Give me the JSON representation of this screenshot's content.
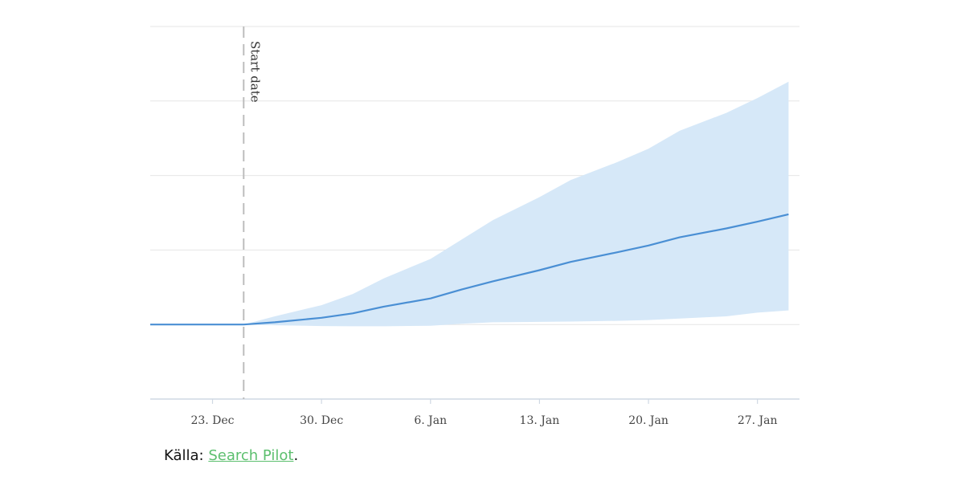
{
  "chart_data": {
    "type": "area",
    "x": [
      "2018-12-19",
      "2018-12-22",
      "2018-12-25",
      "2018-12-27",
      "2018-12-30",
      "2019-01-01",
      "2019-01-03",
      "2019-01-06",
      "2019-01-08",
      "2019-01-10",
      "2019-01-13",
      "2019-01-15",
      "2019-01-18",
      "2019-01-20",
      "2019-01-22",
      "2019-01-25",
      "2019-01-27",
      "2019-01-29"
    ],
    "series": [
      {
        "values": [
          0,
          0,
          0,
          0.15,
          0.45,
          0.75,
          1.2,
          1.75,
          2.35,
          2.9,
          3.65,
          4.2,
          4.85,
          5.3,
          5.85,
          6.45,
          6.9,
          7.4
        ],
        "band_lower": [
          0,
          0,
          0,
          -0.05,
          -0.1,
          -0.12,
          -0.12,
          -0.08,
          0.05,
          0.15,
          0.18,
          0.2,
          0.25,
          0.3,
          0.4,
          0.55,
          0.8,
          0.95
        ],
        "band_upper": [
          0,
          0,
          0,
          0.55,
          1.3,
          2.05,
          3.1,
          4.4,
          5.7,
          7.0,
          8.55,
          9.7,
          10.9,
          11.8,
          13.0,
          14.2,
          15.2,
          16.3
        ]
      }
    ],
    "x_ticks": [
      "2018-12-23",
      "2018-12-30",
      "2019-01-06",
      "2019-01-13",
      "2019-01-20",
      "2019-01-27"
    ],
    "x_tick_labels": [
      "23. Dec",
      "30. Dec",
      "6. Jan",
      "13. Jan",
      "20. Jan",
      "27. Jan"
    ],
    "ylim": [
      -5,
      20
    ],
    "y_gridlines": [
      -5,
      0,
      5,
      10,
      15,
      20
    ],
    "grid": true,
    "annotations": [
      {
        "type": "vertical-dashed-line",
        "x": "2018-12-25",
        "label": "Start date"
      }
    ],
    "colors": {
      "line": "#4a8fd4",
      "band": "#d6e8f8",
      "grid": "#e6e6e6",
      "annotation": "#bdbdbd"
    }
  },
  "source": {
    "prefix": "Källa: ",
    "link_text": "Search Pilot",
    "suffix": "."
  }
}
